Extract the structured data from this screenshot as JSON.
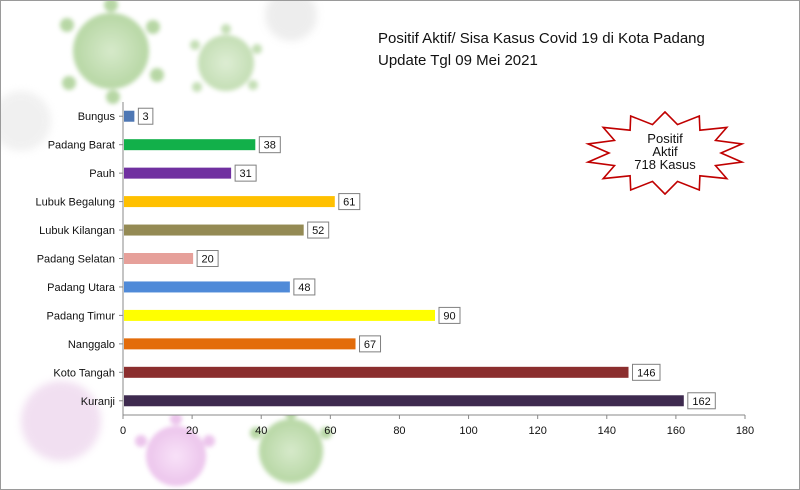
{
  "title_line1": "Positif Aktif/ Sisa Kasus Covid 19 di Kota Padang",
  "title_line2": "Update Tgl 09 Mei 2021",
  "badge": {
    "line1": "Positif",
    "line2": "Aktif",
    "line3": "718 Kasus"
  },
  "chart_data": {
    "type": "bar",
    "orientation": "horizontal",
    "categories": [
      "Bungus",
      "Padang Barat",
      "Pauh",
      "Lubuk Begalung",
      "Lubuk Kilangan",
      "Padang Selatan",
      "Padang Utara",
      "Padang Timur",
      "Nanggalo",
      "Koto Tangah",
      "Kuranji"
    ],
    "values": [
      3,
      38,
      31,
      61,
      52,
      20,
      48,
      90,
      67,
      146,
      162
    ],
    "colors": [
      "#4e77b4",
      "#12b04a",
      "#7030a0",
      "#ffc000",
      "#948a54",
      "#e6a09a",
      "#4f8ad8",
      "#ffff00",
      "#e36c0a",
      "#8b2e2e",
      "#3e2a4f"
    ],
    "xlim": [
      0,
      180
    ],
    "xticks": [
      0,
      20,
      40,
      60,
      80,
      100,
      120,
      140,
      160,
      180
    ],
    "data_labels": true,
    "grid": false
  }
}
